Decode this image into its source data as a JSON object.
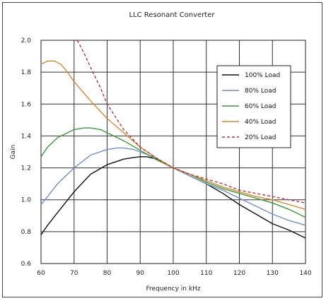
{
  "chart_data": {
    "type": "line",
    "title": "LLC Resonant Converter",
    "xlabel": "Frequency in kHz",
    "ylabel": "Gain",
    "xlim": [
      60,
      140
    ],
    "ylim": [
      0.6,
      2.0
    ],
    "x_ticks": [
      "60",
      "70",
      "80",
      "90",
      "100",
      "110",
      "120",
      "130",
      "140"
    ],
    "y_ticks": [
      "0.6",
      "0.8",
      "1.0",
      "1.2",
      "1.4",
      "1.6",
      "1.8",
      "2.0"
    ],
    "grid": "on",
    "legend_position": "right",
    "series": [
      {
        "name": "100% Load",
        "color": "#111111",
        "dash": "solid",
        "x": [
          60,
          62,
          65,
          70,
          75,
          80,
          85,
          88,
          90,
          92,
          95,
          100,
          105,
          110,
          115,
          120,
          125,
          130,
          135,
          140
        ],
        "y": [
          0.78,
          0.84,
          0.92,
          1.05,
          1.16,
          1.22,
          1.255,
          1.265,
          1.27,
          1.27,
          1.255,
          1.2,
          1.15,
          1.1,
          1.04,
          0.97,
          0.91,
          0.85,
          0.81,
          0.76
        ]
      },
      {
        "name": "80% Load",
        "color": "#6f8fd0",
        "dash": "solid",
        "x": [
          60,
          62,
          65,
          70,
          75,
          80,
          83,
          85,
          88,
          90,
          95,
          100,
          105,
          110,
          115,
          120,
          125,
          130,
          135,
          140
        ],
        "y": [
          0.97,
          1.02,
          1.1,
          1.2,
          1.28,
          1.315,
          1.325,
          1.325,
          1.315,
          1.3,
          1.26,
          1.2,
          1.15,
          1.1,
          1.06,
          1.01,
          0.96,
          0.91,
          0.87,
          0.84
        ]
      },
      {
        "name": "60% Load",
        "color": "#3a9a3a",
        "dash": "solid",
        "x": [
          60,
          62,
          65,
          70,
          73,
          75,
          78,
          80,
          85,
          90,
          95,
          100,
          105,
          110,
          115,
          120,
          125,
          130,
          135,
          140
        ],
        "y": [
          1.27,
          1.33,
          1.39,
          1.44,
          1.45,
          1.45,
          1.44,
          1.42,
          1.37,
          1.31,
          1.25,
          1.2,
          1.16,
          1.11,
          1.07,
          1.04,
          1.01,
          0.98,
          0.94,
          0.89
        ]
      },
      {
        "name": "40% Load",
        "color": "#d8892a",
        "dash": "solid",
        "x": [
          60,
          62,
          64,
          66,
          68,
          70,
          75,
          80,
          85,
          90,
          95,
          100,
          105,
          110,
          115,
          120,
          125,
          130,
          135,
          140
        ],
        "y": [
          1.85,
          1.87,
          1.87,
          1.85,
          1.8,
          1.74,
          1.62,
          1.51,
          1.42,
          1.33,
          1.26,
          1.2,
          1.16,
          1.12,
          1.08,
          1.05,
          1.02,
          1.0,
          0.97,
          0.94
        ]
      },
      {
        "name": "20% Load",
        "color": "#c0303a",
        "dash": "dashed",
        "x": [
          71,
          73,
          75,
          78,
          80,
          85,
          90,
          95,
          100,
          105,
          110,
          115,
          120,
          125,
          130,
          135,
          140
        ],
        "y": [
          2.0,
          1.92,
          1.83,
          1.7,
          1.6,
          1.44,
          1.33,
          1.26,
          1.2,
          1.16,
          1.13,
          1.1,
          1.06,
          1.04,
          1.02,
          1.0,
          0.98
        ]
      }
    ]
  }
}
